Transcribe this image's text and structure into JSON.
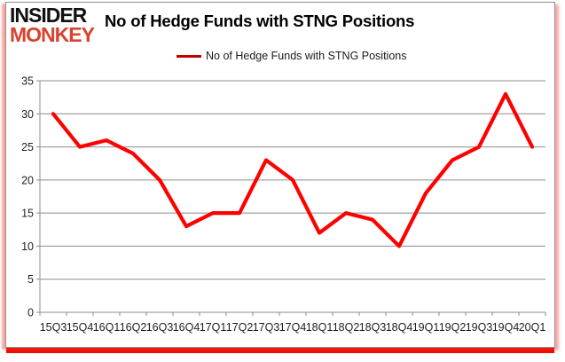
{
  "logo": {
    "line1": "INSIDER",
    "line2": "MONKEY",
    "accent_color": "#d8432e"
  },
  "chart_data": {
    "type": "line",
    "title": "No of Hedge Funds with STNG Positions",
    "categories": [
      "15Q3",
      "15Q4",
      "16Q1",
      "16Q2",
      "16Q3",
      "16Q4",
      "17Q1",
      "17Q2",
      "17Q3",
      "17Q4",
      "18Q1",
      "18Q2",
      "18Q3",
      "18Q4",
      "19Q1",
      "19Q2",
      "19Q3",
      "19Q4",
      "20Q1"
    ],
    "series": [
      {
        "name": "No of Hedge Funds with STNG Positions",
        "color": "#ff0000",
        "values": [
          30,
          25,
          26,
          24,
          20,
          13,
          15,
          15,
          23,
          20,
          12,
          15,
          14,
          10,
          18,
          23,
          25,
          33,
          25
        ]
      }
    ],
    "xlabel": "",
    "ylabel": "",
    "ylim": [
      0,
      35
    ],
    "ytick_step": 5,
    "yticks": [
      0,
      5,
      10,
      15,
      20,
      25,
      30,
      35
    ],
    "grid": true,
    "legend_position": "top-center",
    "legend_marker_color": "#c00000",
    "gridline_color": "#8c8c8c",
    "axis_color": "#8c8c8c",
    "tick_label_color": "#1f1f1f",
    "line_width": 4.2
  }
}
